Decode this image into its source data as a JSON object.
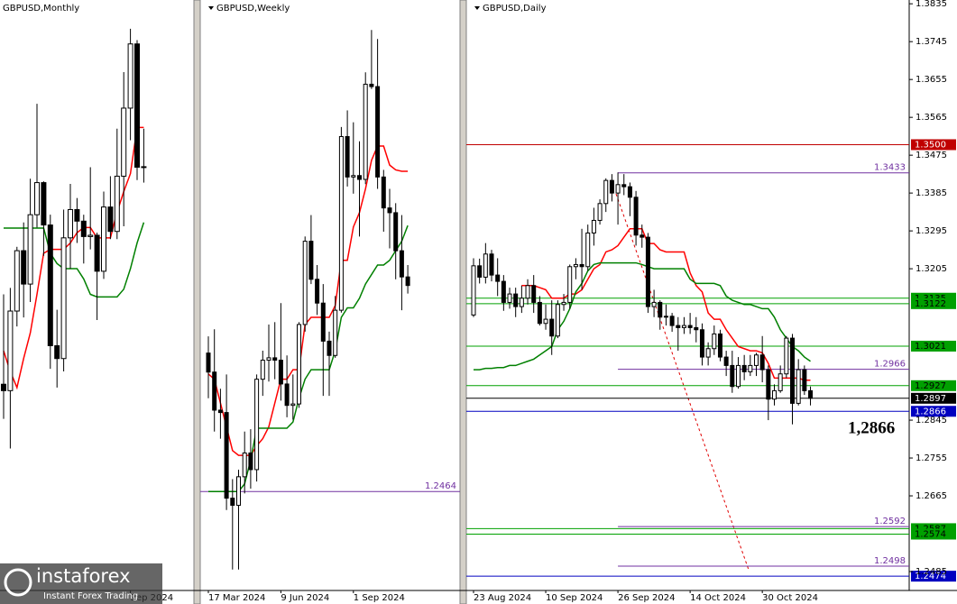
{
  "chart_data": [
    {
      "type": "candlestick",
      "title": "GBPUSD,Monthly",
      "categories": [
        null,
        null,
        null,
        null,
        null,
        null,
        null,
        null,
        null,
        null,
        null,
        null,
        null,
        null,
        null,
        null,
        null,
        null,
        null,
        "Sep 2024",
        null,
        null
      ],
      "open": [
        1.205,
        1.2025,
        1.2335,
        1.257,
        1.244,
        1.271,
        1.2835,
        1.267,
        1.22,
        1.215,
        1.262,
        1.273,
        1.2685,
        1.2625,
        1.263,
        1.249,
        1.274,
        1.2645,
        1.286,
        1.3125,
        1.3375,
        1.2895
      ],
      "high": [
        1.24,
        1.2425,
        1.2585,
        1.268,
        1.285,
        1.3142,
        1.284,
        1.271,
        1.234,
        1.273,
        1.283,
        1.2775,
        1.271,
        1.2895,
        1.264,
        1.28,
        1.286,
        1.3045,
        1.3265,
        1.3434,
        1.339,
        1.3045
      ],
      "low": [
        1.1915,
        1.18,
        1.2275,
        1.231,
        1.237,
        1.266,
        1.255,
        1.211,
        1.2037,
        1.21,
        1.25,
        1.26,
        1.252,
        1.2575,
        1.23,
        1.246,
        1.2615,
        1.2615,
        1.2665,
        1.3,
        1.2845,
        1.2835
      ],
      "close": [
        1.2025,
        1.2335,
        1.257,
        1.244,
        1.271,
        1.2835,
        1.267,
        1.22,
        1.215,
        1.262,
        1.273,
        1.2685,
        1.2625,
        1.263,
        1.249,
        1.274,
        1.2645,
        1.286,
        1.3125,
        1.3375,
        1.2895,
        1.2897
      ],
      "series": [
        {
          "color": "#ff0000",
          "values": [
            1.218,
            1.21,
            1.2037,
            1.215,
            1.225,
            1.24,
            1.256,
            1.2575,
            1.2575,
            1.2575,
            1.26,
            1.264,
            1.266,
            1.266,
            1.262,
            1.262,
            1.262,
            1.272,
            1.28,
            1.287,
            1.305,
            1.305
          ]
        },
        {
          "color": "#008000",
          "values": [
            1.2658,
            1.2658,
            1.2658,
            1.2658,
            1.2658,
            1.2658,
            1.2658,
            1.256,
            1.252,
            1.25,
            1.25,
            1.25,
            1.246,
            1.24,
            1.239,
            1.239,
            1.239,
            1.239,
            1.242,
            1.25,
            1.26,
            1.268
          ]
        }
      ],
      "ylim": [
        1.1247,
        1.3546
      ]
    },
    {
      "type": "candlestick",
      "title": "GBPUSD,Weekly",
      "categories": [
        "17 Mar 2024",
        null,
        null,
        null,
        null,
        null,
        null,
        null,
        null,
        null,
        null,
        null,
        "9 Jun 2024",
        null,
        null,
        null,
        null,
        null,
        null,
        null,
        null,
        null,
        null,
        null,
        "1 Sep 2024",
        null,
        null,
        null,
        null,
        null,
        null,
        null,
        null,
        null
      ],
      "open": [
        1.2755,
        1.2715,
        1.2635,
        1.263,
        1.245,
        1.2435,
        1.2495,
        1.2545,
        1.251,
        1.27,
        1.274,
        1.2745,
        1.274,
        1.269,
        1.2645,
        1.2648,
        1.2815,
        1.299,
        1.291,
        1.286,
        1.278,
        1.275,
        1.2845,
        1.321,
        1.3125,
        1.3128,
        1.312,
        1.332,
        1.3315,
        1.3125,
        1.306,
        1.305,
        1.297,
        1.2915
      ],
      "high": [
        1.279,
        1.2805,
        1.268,
        1.271,
        1.249,
        1.251,
        1.259,
        1.2595,
        1.271,
        1.276,
        1.2815,
        1.282,
        1.286,
        1.275,
        1.271,
        1.282,
        1.3,
        1.3045,
        1.294,
        1.29,
        1.28,
        1.2875,
        1.323,
        1.3265,
        1.324,
        1.32,
        1.3345,
        1.3434,
        1.3415,
        1.314,
        1.31,
        1.307,
        1.3045,
        1.294
      ],
      "low": [
        1.266,
        1.259,
        1.2575,
        1.2425,
        1.23,
        1.23,
        1.246,
        1.247,
        1.2485,
        1.2665,
        1.2695,
        1.27,
        1.2655,
        1.262,
        1.2615,
        1.264,
        1.28,
        1.29,
        1.2835,
        1.2665,
        1.2665,
        1.2745,
        1.284,
        1.3105,
        1.309,
        1.3,
        1.311,
        1.331,
        1.31,
        1.301,
        1.2975,
        1.291,
        1.2845,
        1.288
      ],
      "close": [
        1.2715,
        1.2635,
        1.263,
        1.245,
        1.2435,
        1.2495,
        1.2545,
        1.251,
        1.27,
        1.274,
        1.2745,
        1.274,
        1.269,
        1.2645,
        1.2648,
        1.2815,
        1.299,
        1.291,
        1.286,
        1.278,
        1.275,
        1.2845,
        1.321,
        1.3125,
        1.3128,
        1.312,
        1.332,
        1.3315,
        1.3125,
        1.306,
        1.305,
        1.297,
        1.2915,
        1.2897
      ],
      "series": [
        {
          "color": "#ff0000",
          "values": [
            1.2711,
            1.27,
            1.265,
            1.26,
            1.255,
            1.254,
            1.254,
            1.254,
            1.256,
            1.2575,
            1.26,
            1.265,
            1.27,
            1.27,
            1.272,
            1.272,
            1.2815,
            1.283,
            1.283,
            1.283,
            1.283,
            1.2855,
            1.295,
            1.295,
            1.302,
            1.305,
            1.31,
            1.316,
            1.319,
            1.319,
            1.315,
            1.314,
            1.3137,
            1.3137
          ]
        },
        {
          "color": "#008000",
          "values": [
            1.2464,
            1.2464,
            1.2464,
            1.2464,
            1.2464,
            1.2464,
            1.248,
            1.253,
            1.2597,
            1.2597,
            1.2597,
            1.2597,
            1.2597,
            1.2597,
            1.261,
            1.266,
            1.27,
            1.272,
            1.272,
            1.272,
            1.272,
            1.276,
            1.283,
            1.285,
            1.285,
            1.287,
            1.29,
            1.292,
            1.294,
            1.294,
            1.295,
            1.297,
            1.299,
            1.3023
          ]
        }
      ],
      "levels": [
        {
          "value": 1.2464,
          "label": "1.2464",
          "color": "#7030a0",
          "label_style": "plain"
        }
      ],
      "ylim": [
        1.2256,
        1.3497
      ]
    },
    {
      "type": "candlestick",
      "title": "GBPUSD,Daily",
      "categories": [
        "23 Aug 2024",
        null,
        null,
        null,
        null,
        null,
        null,
        null,
        null,
        null,
        null,
        null,
        "10 Sep 2024",
        null,
        null,
        null,
        null,
        null,
        null,
        null,
        null,
        null,
        null,
        null,
        "26 Sep 2024",
        null,
        null,
        null,
        null,
        null,
        null,
        null,
        null,
        null,
        null,
        null,
        "14 Oct 2024",
        null,
        null,
        null,
        null,
        null,
        null,
        null,
        null,
        null,
        null,
        null,
        "30 Oct 2024",
        null,
        null,
        null,
        null,
        null,
        null,
        null,
        null
      ],
      "open": [
        1.3095,
        1.3212,
        1.3185,
        1.324,
        1.319,
        1.3175,
        1.3125,
        1.3145,
        1.3115,
        1.3135,
        1.3165,
        1.3125,
        1.3075,
        1.3085,
        1.3045,
        1.312,
        1.3125,
        1.321,
        1.3215,
        1.321,
        1.329,
        1.332,
        1.336,
        1.3415,
        1.3385,
        1.3405,
        1.34,
        1.3375,
        1.3285,
        1.328,
        1.3115,
        1.3125,
        1.309,
        1.3092,
        1.307,
        1.3065,
        1.307,
        1.3065,
        1.306,
        1.2995,
        1.3015,
        1.305,
        1.2995,
        1.2975,
        1.2925,
        1.2975,
        1.296,
        1.2975,
        1.3,
        1.2965,
        1.2895,
        1.2915,
        1.2955,
        1.304,
        1.2885,
        1.2965,
        1.2915
      ],
      "high": [
        1.323,
        1.3229,
        1.3266,
        1.325,
        1.323,
        1.319,
        1.316,
        1.316,
        1.3165,
        1.318,
        1.319,
        1.314,
        1.312,
        1.313,
        1.313,
        1.3145,
        1.3215,
        1.323,
        1.33,
        1.331,
        1.335,
        1.337,
        1.342,
        1.343,
        1.3434,
        1.343,
        1.341,
        1.339,
        1.331,
        1.329,
        1.3155,
        1.313,
        1.312,
        1.31,
        1.309,
        1.309,
        1.31,
        1.309,
        1.3075,
        1.303,
        1.307,
        1.306,
        1.301,
        1.301,
        1.2995,
        1.3,
        1.3,
        1.3005,
        1.3045,
        1.2975,
        1.293,
        1.2975,
        1.3045,
        1.305,
        1.299,
        1.2975,
        1.2925
      ],
      "low": [
        1.309,
        1.317,
        1.317,
        1.3175,
        1.314,
        1.3105,
        1.311,
        1.309,
        1.31,
        1.312,
        1.31,
        1.307,
        1.306,
        1.3,
        1.304,
        1.3105,
        1.311,
        1.318,
        1.3155,
        1.32,
        1.326,
        1.331,
        1.334,
        1.3365,
        1.331,
        1.338,
        1.333,
        1.326,
        1.3255,
        1.31,
        1.309,
        1.306,
        1.307,
        1.3055,
        1.301,
        1.305,
        1.305,
        1.303,
        1.2975,
        1.2975,
        1.3,
        1.2985,
        1.295,
        1.291,
        1.292,
        1.294,
        1.295,
        1.295,
        1.2935,
        1.2845,
        1.288,
        1.291,
        1.2945,
        1.2835,
        1.288,
        1.2905,
        1.288
      ],
      "close": [
        1.3212,
        1.3185,
        1.324,
        1.319,
        1.3175,
        1.3125,
        1.3145,
        1.3115,
        1.3135,
        1.3165,
        1.3125,
        1.3075,
        1.3085,
        1.3045,
        1.312,
        1.3125,
        1.321,
        1.3215,
        1.321,
        1.329,
        1.332,
        1.336,
        1.3415,
        1.3385,
        1.3405,
        1.34,
        1.3375,
        1.3285,
        1.328,
        1.3115,
        1.3125,
        1.309,
        1.3092,
        1.307,
        1.3065,
        1.307,
        1.3065,
        1.306,
        1.2995,
        1.3015,
        1.305,
        1.2995,
        1.2975,
        1.2925,
        1.2975,
        1.296,
        1.2975,
        1.3,
        1.2965,
        1.2895,
        1.2915,
        1.2955,
        1.304,
        1.2885,
        1.2965,
        1.2915,
        1.2897
      ],
      "series": [
        {
          "color": "#ff0000",
          "values": [
            null,
            null,
            null,
            null,
            null,
            null,
            null,
            null,
            1.3165,
            1.3165,
            1.3165,
            1.316,
            1.3155,
            1.3135,
            1.3135,
            1.3135,
            1.3145,
            1.3145,
            1.3155,
            1.318,
            1.3205,
            1.3215,
            1.3245,
            1.325,
            1.326,
            1.328,
            1.33,
            1.33,
            1.33,
            1.3265,
            1.3265,
            1.325,
            1.3245,
            1.3245,
            1.3245,
            1.3245,
            1.3195,
            1.3165,
            1.315,
            1.31,
            1.3085,
            1.3085,
            1.306,
            1.304,
            1.302,
            1.3015,
            1.301,
            1.301,
            1.3005,
            1.298,
            1.2945,
            1.2945,
            1.2945,
            1.2945,
            1.2945,
            1.294,
            1.294
          ]
        },
        {
          "color": "#008000",
          "values": [
            1.2965,
            1.2965,
            1.2968,
            1.2968,
            1.297,
            1.297,
            1.2975,
            1.2975,
            1.298,
            1.2985,
            1.299,
            1.3,
            1.301,
            1.302,
            1.306,
            1.308,
            1.311,
            1.315,
            1.317,
            1.32,
            1.3215,
            1.3219,
            1.3219,
            1.3219,
            1.3219,
            1.3219,
            1.3219,
            1.3219,
            1.3215,
            1.321,
            1.3205,
            1.3205,
            1.3205,
            1.3205,
            1.3205,
            1.3205,
            1.318,
            1.317,
            1.317,
            1.317,
            1.317,
            1.3165,
            1.314,
            1.313,
            1.3125,
            1.312,
            1.312,
            1.3115,
            1.311,
            1.311,
            1.309,
            1.306,
            1.304,
            1.302,
            1.301,
            1.2995,
            1.2985
          ]
        }
      ],
      "levels": [
        {
          "value": 1.35,
          "label": "1.3500",
          "color": "#c00000",
          "label_style": "box"
        },
        {
          "value": 1.3433,
          "label": "1.3433",
          "color": "#7030a0",
          "label_style": "plain"
        },
        {
          "value": 1.3135,
          "label": "1.3135",
          "color": "#00a000",
          "label_style": "box"
        },
        {
          "value": 1.3122,
          "label": "1.3122",
          "color": "#00a000",
          "label_style": "box"
        },
        {
          "value": 1.3021,
          "label": "1.3021",
          "color": "#00a000",
          "label_style": "box"
        },
        {
          "value": 1.2966,
          "label": "1.2966",
          "color": "#7030a0",
          "label_style": "plain"
        },
        {
          "value": 1.2927,
          "label": "1.2927",
          "color": "#00a000",
          "label_style": "box"
        },
        {
          "value": 1.2897,
          "label": "1.2897",
          "color": "#000000",
          "label_style": "box"
        },
        {
          "value": 1.2866,
          "label": "1.2866",
          "color": "#0000c0",
          "label_style": "box"
        },
        {
          "value": 1.2592,
          "label": "1.2592",
          "color": "#7030a0",
          "label_style": "plain"
        },
        {
          "value": 1.2587,
          "label": "1.2587",
          "color": "#00a000",
          "label_style": "box"
        },
        {
          "value": 1.2574,
          "label": "1.2574",
          "color": "#00a000",
          "label_style": "box"
        },
        {
          "value": 1.2498,
          "label": "1.2498",
          "color": "#7030a0",
          "label_style": "plain"
        },
        {
          "value": 1.2474,
          "label": "1.2474",
          "color": "#0000c0",
          "label_style": "box"
        }
      ],
      "annotation": "1,2866",
      "ylim": [
        1.244,
        1.3844
      ],
      "yticks": [
        {
          "value": 1.3835,
          "label": "1.3835"
        },
        {
          "value": 1.3745,
          "label": "1.3745"
        },
        {
          "value": 1.3655,
          "label": "1.3655"
        },
        {
          "value": 1.3565,
          "label": "1.3565"
        },
        {
          "value": 1.3475,
          "label": "1.3475"
        },
        {
          "value": 1.3385,
          "label": "1.3385"
        },
        {
          "value": 1.3295,
          "label": "1.3295"
        },
        {
          "value": 1.3205,
          "label": "1.3205"
        },
        {
          "value": 1.2845,
          "label": "1.2845"
        },
        {
          "value": 1.2755,
          "label": "1.2755"
        },
        {
          "value": 1.2665,
          "label": "1.2665"
        },
        {
          "value": 1.2485,
          "label": "1.2485"
        }
      ]
    }
  ],
  "watermark": {
    "name": "instaforex",
    "tagline": "Instant Forex Trading"
  }
}
